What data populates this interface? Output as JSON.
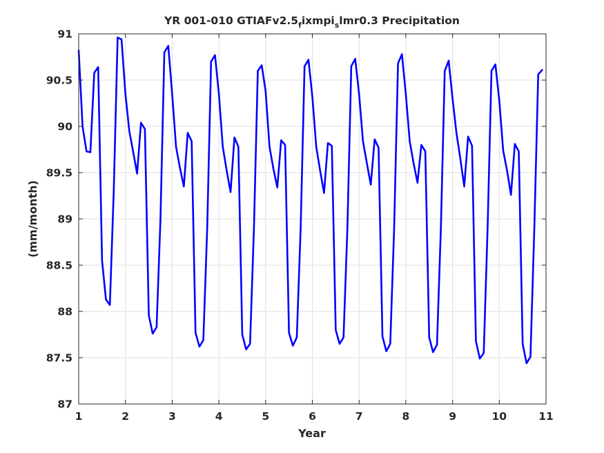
{
  "chart_data": {
    "type": "line",
    "title": {
      "prefix": "YR 001-010 GTIAFv2.5",
      "sub1": "f",
      "mid": "ixmpi",
      "sub2": "s",
      "suffix": "lmr0.3 Precipitation"
    },
    "xlabel": "Year",
    "ylabel": "(mm/month)",
    "xlim": [
      1,
      11
    ],
    "ylim": [
      87,
      91
    ],
    "xticks": [
      "1",
      "2",
      "3",
      "4",
      "5",
      "6",
      "7",
      "8",
      "9",
      "10",
      "11"
    ],
    "yticks": [
      "87",
      "87.5",
      "88",
      "88.5",
      "89",
      "89.5",
      "90",
      "90.5",
      "91"
    ],
    "grid": true,
    "color": "#0000ff",
    "series": [
      {
        "x": [
          1.0,
          1.083,
          1.167,
          1.25,
          1.333,
          1.417,
          1.5,
          1.583,
          1.667,
          1.75,
          1.833,
          1.917,
          2.0,
          2.083,
          2.167,
          2.25,
          2.333,
          2.417,
          2.5,
          2.583,
          2.667,
          2.75,
          2.833,
          2.917,
          3.0,
          3.083,
          3.167,
          3.25,
          3.333,
          3.417,
          3.5,
          3.583,
          3.667,
          3.75,
          3.833,
          3.917,
          4.0,
          4.083,
          4.167,
          4.25,
          4.333,
          4.417,
          4.5,
          4.583,
          4.667,
          4.75,
          4.833,
          4.917,
          5.0,
          5.083,
          5.167,
          5.25,
          5.333,
          5.417,
          5.5,
          5.583,
          5.667,
          5.75,
          5.833,
          5.917,
          6.0,
          6.083,
          6.167,
          6.25,
          6.333,
          6.417,
          6.5,
          6.583,
          6.667,
          6.75,
          6.833,
          6.917,
          7.0,
          7.083,
          7.167,
          7.25,
          7.333,
          7.417,
          7.5,
          7.583,
          7.667,
          7.75,
          7.833,
          7.917,
          8.0,
          8.083,
          8.167,
          8.25,
          8.333,
          8.417,
          8.5,
          8.583,
          8.667,
          8.75,
          8.833,
          8.917,
          9.0,
          9.083,
          9.167,
          9.25,
          9.333,
          9.417,
          9.5,
          9.583,
          9.667,
          9.75,
          9.833,
          9.917,
          10.0,
          10.083,
          10.167,
          10.25,
          10.333,
          10.417,
          10.5,
          10.583,
          10.667,
          10.75,
          10.833,
          10.917
        ],
        "y": [
          90.82,
          90.0,
          89.73,
          89.72,
          90.58,
          90.64,
          88.55,
          88.13,
          88.07,
          89.3,
          90.96,
          90.94,
          90.35,
          89.95,
          89.72,
          89.49,
          90.04,
          89.97,
          87.96,
          87.76,
          87.83,
          89.0,
          90.8,
          90.87,
          90.35,
          89.78,
          89.55,
          89.35,
          89.93,
          89.84,
          87.77,
          87.62,
          87.69,
          88.9,
          90.7,
          90.77,
          90.35,
          89.78,
          89.52,
          89.29,
          89.88,
          89.78,
          87.75,
          87.59,
          87.65,
          88.9,
          90.6,
          90.66,
          90.38,
          89.78,
          89.54,
          89.34,
          89.85,
          89.8,
          87.77,
          87.63,
          87.72,
          88.9,
          90.65,
          90.72,
          90.32,
          89.78,
          89.52,
          89.28,
          89.82,
          89.79,
          87.8,
          87.65,
          87.72,
          88.9,
          90.65,
          90.73,
          90.35,
          89.84,
          89.6,
          89.37,
          89.86,
          89.77,
          87.73,
          87.57,
          87.65,
          88.9,
          90.68,
          90.78,
          90.35,
          89.84,
          89.6,
          89.39,
          89.8,
          89.73,
          87.72,
          87.56,
          87.64,
          88.9,
          90.6,
          90.71,
          90.3,
          89.93,
          89.65,
          89.35,
          89.89,
          89.79,
          87.68,
          87.49,
          87.55,
          88.9,
          90.6,
          90.67,
          90.28,
          89.74,
          89.52,
          89.26,
          89.81,
          89.73,
          87.65,
          87.44,
          87.51,
          88.9,
          90.56,
          90.61
        ]
      }
    ]
  }
}
